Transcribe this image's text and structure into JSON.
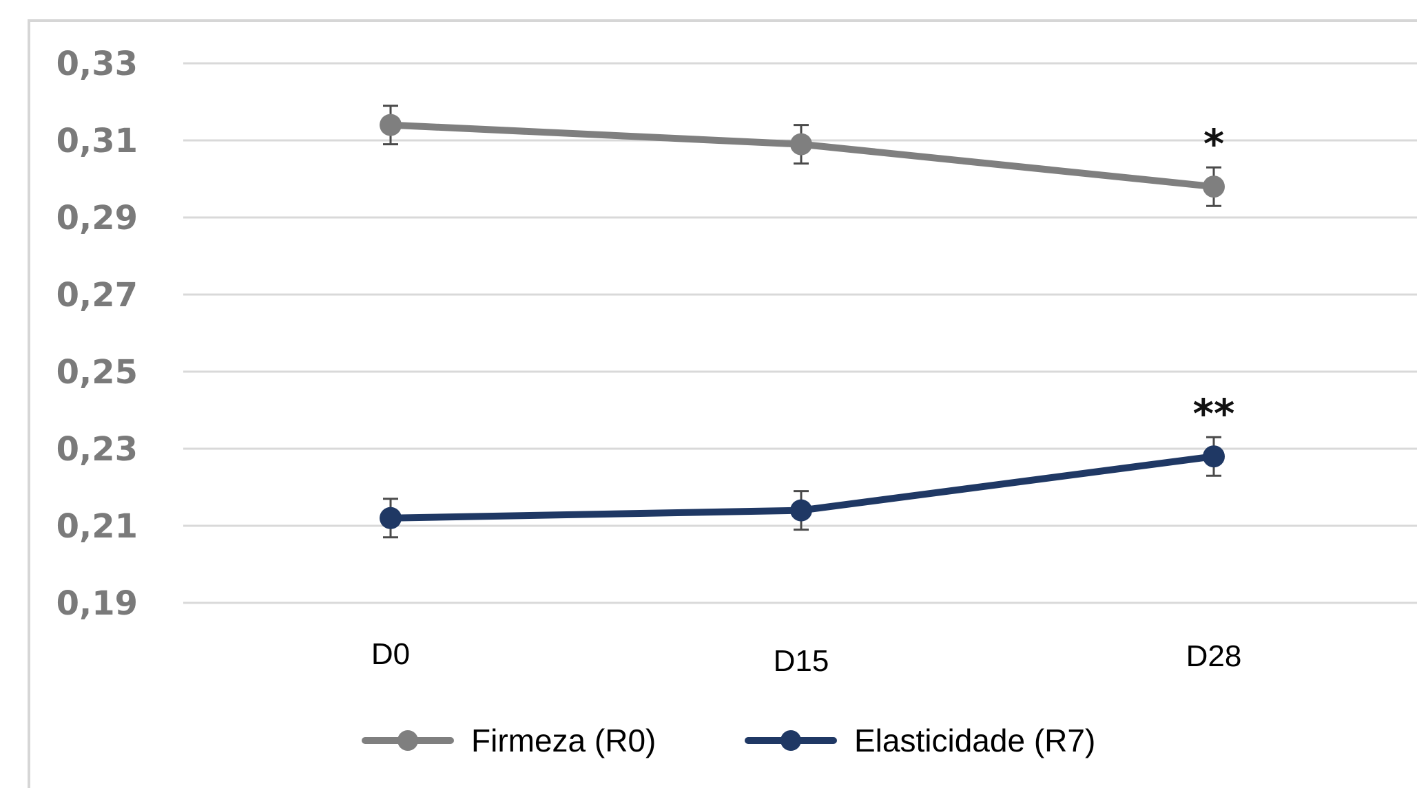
{
  "chart_data": {
    "type": "line",
    "categories": [
      "D0",
      "D15",
      "D28"
    ],
    "y_tick_labels": [
      "0,19",
      "0,21",
      "0,23",
      "0,25",
      "0,27",
      "0,29",
      "0,31",
      "0,33"
    ],
    "y_ticks": [
      0.19,
      0.21,
      0.23,
      0.25,
      0.27,
      0.29,
      0.31,
      0.33
    ],
    "ylim": [
      0.19,
      0.33
    ],
    "grid": true,
    "legend_position": "bottom",
    "series": [
      {
        "name": "Firmeza (R0)",
        "color": "#7f7f7f",
        "values": [
          0.314,
          0.309,
          0.298
        ],
        "error": [
          0.005,
          0.005,
          0.005
        ],
        "annotations": [
          "",
          "",
          "*"
        ]
      },
      {
        "name": "Elasticidade (R7)",
        "color": "#1f3864",
        "values": [
          0.212,
          0.214,
          0.228
        ],
        "error": [
          0.005,
          0.005,
          0.005
        ],
        "annotations": [
          "",
          "",
          "**"
        ]
      }
    ]
  }
}
